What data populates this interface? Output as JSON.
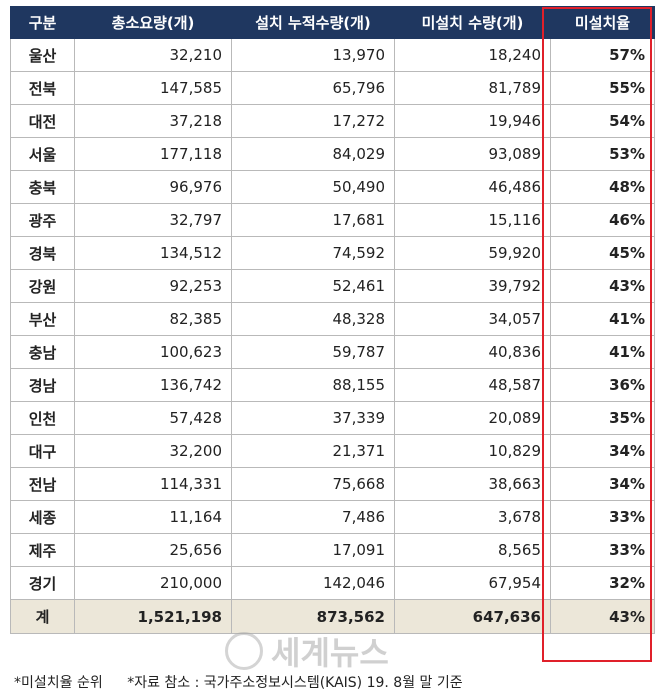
{
  "table": {
    "headers": [
      "구분",
      "총소요량(개)",
      "설치 누적수량(개)",
      "미설치 수량(개)",
      "미설치율"
    ],
    "rows": [
      [
        "울산",
        "32,210",
        "13,970",
        "18,240",
        "57%"
      ],
      [
        "전북",
        "147,585",
        "65,796",
        "81,789",
        "55%"
      ],
      [
        "대전",
        "37,218",
        "17,272",
        "19,946",
        "54%"
      ],
      [
        "서울",
        "177,118",
        "84,029",
        "93,089",
        "53%"
      ],
      [
        "충북",
        "96,976",
        "50,490",
        "46,486",
        "48%"
      ],
      [
        "광주",
        "32,797",
        "17,681",
        "15,116",
        "46%"
      ],
      [
        "경북",
        "134,512",
        "74,592",
        "59,920",
        "45%"
      ],
      [
        "강원",
        "92,253",
        "52,461",
        "39,792",
        "43%"
      ],
      [
        "부산",
        "82,385",
        "48,328",
        "34,057",
        "41%"
      ],
      [
        "충남",
        "100,623",
        "59,787",
        "40,836",
        "41%"
      ],
      [
        "경남",
        "136,742",
        "88,155",
        "48,587",
        "36%"
      ],
      [
        "인천",
        "57,428",
        "37,339",
        "20,089",
        "35%"
      ],
      [
        "대구",
        "32,200",
        "21,371",
        "10,829",
        "34%"
      ],
      [
        "전남",
        "114,331",
        "75,668",
        "38,663",
        "34%"
      ],
      [
        "세종",
        "11,164",
        "7,486",
        "3,678",
        "33%"
      ],
      [
        "제주",
        "25,656",
        "17,091",
        "8,565",
        "33%"
      ],
      [
        "경기",
        "210,000",
        "142,046",
        "67,954",
        "32%"
      ]
    ],
    "total": [
      "계",
      "1,521,198",
      "873,562",
      "647,636",
      "43%"
    ]
  },
  "colors": {
    "header_bg": "#1f3760",
    "total_bg": "#ece7d9",
    "highlight": "#e0202a"
  },
  "watermark": {
    "text": "세계뉴스"
  },
  "footnotes": [
    "*미설치율 순위",
    "*자료 참소 : 국가주소정보시스템(KAIS) 19. 8월 말 기준"
  ]
}
